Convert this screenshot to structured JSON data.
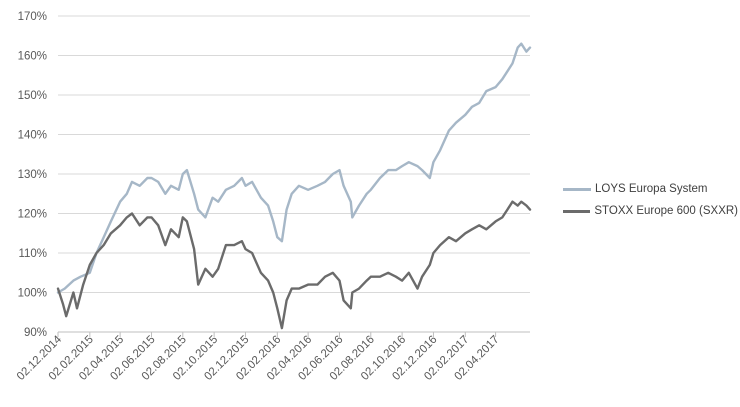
{
  "chart_data": {
    "type": "line",
    "title": "",
    "xlabel": "",
    "ylabel": "",
    "ylim": [
      90,
      170
    ],
    "yticks": [
      90,
      100,
      110,
      120,
      130,
      140,
      150,
      160,
      170
    ],
    "ytick_labels": [
      "90%",
      "100%",
      "110%",
      "120%",
      "130%",
      "140%",
      "150%",
      "160%",
      "170%"
    ],
    "xticks": [
      "2014-12-02",
      "2015-02-02",
      "2015-04-02",
      "2015-06-02",
      "2015-08-02",
      "2015-10-02",
      "2015-12-02",
      "2016-02-02",
      "2016-04-02",
      "2016-06-02",
      "2016-08-02",
      "2016-10-02",
      "2016-12-02",
      "2017-02-02",
      "2017-04-02"
    ],
    "xtick_labels": [
      "02.12.2014",
      "02.02.2015",
      "02.04.2015",
      "02.06.2015",
      "02.08.2015",
      "02.10.2015",
      "02.12.2015",
      "02.02.2016",
      "02.04.2016",
      "02.06.2016",
      "02.08.2016",
      "02.10.2016",
      "02.12.2016",
      "02.02.2017",
      "02.04.2017"
    ],
    "xlim": [
      "2014-12-02",
      "2017-06-08"
    ],
    "grid": "horizontal",
    "legend_position": "right",
    "series": [
      {
        "name": "LOYS Europa System",
        "color": "#a6b7c7",
        "x": [
          "2014-12-02",
          "2014-12-15",
          "2015-01-01",
          "2015-01-15",
          "2015-02-02",
          "2015-02-15",
          "2015-03-01",
          "2015-03-15",
          "2015-04-02",
          "2015-04-15",
          "2015-04-25",
          "2015-05-10",
          "2015-05-25",
          "2015-06-02",
          "2015-06-15",
          "2015-06-29",
          "2015-07-10",
          "2015-07-25",
          "2015-08-02",
          "2015-08-10",
          "2015-08-24",
          "2015-09-01",
          "2015-09-15",
          "2015-09-29",
          "2015-10-10",
          "2015-10-25",
          "2015-11-10",
          "2015-11-25",
          "2015-12-02",
          "2015-12-15",
          "2016-01-01",
          "2016-01-15",
          "2016-01-25",
          "2016-02-02",
          "2016-02-11",
          "2016-02-20",
          "2016-03-01",
          "2016-03-15",
          "2016-04-02",
          "2016-04-20",
          "2016-05-05",
          "2016-05-20",
          "2016-06-02",
          "2016-06-10",
          "2016-06-24",
          "2016-06-27",
          "2016-07-10",
          "2016-07-25",
          "2016-08-02",
          "2016-08-20",
          "2016-09-05",
          "2016-09-20",
          "2016-10-02",
          "2016-10-15",
          "2016-11-01",
          "2016-11-10",
          "2016-11-25",
          "2016-12-02",
          "2016-12-15",
          "2017-01-01",
          "2017-01-15",
          "2017-02-02",
          "2017-02-15",
          "2017-03-01",
          "2017-03-15",
          "2017-04-02",
          "2017-04-15",
          "2017-04-25",
          "2017-05-05",
          "2017-05-15",
          "2017-05-22",
          "2017-06-01",
          "2017-06-08"
        ],
        "y": [
          100,
          101,
          103,
          104,
          105,
          110,
          114,
          118,
          123,
          125,
          128,
          127,
          129,
          129,
          128,
          125,
          127,
          126,
          130,
          131,
          125,
          121,
          119,
          124,
          123,
          126,
          127,
          129,
          127,
          128,
          124,
          122,
          118,
          114,
          113,
          121,
          125,
          127,
          126,
          127,
          128,
          130,
          131,
          127,
          123,
          119,
          122,
          125,
          126,
          129,
          131,
          131,
          132,
          133,
          132,
          131,
          129,
          133,
          136,
          141,
          143,
          145,
          147,
          148,
          151,
          152,
          154,
          156,
          158,
          162,
          163,
          161,
          162
        ]
      },
      {
        "name": "STOXX Europe 600 (SXXR)",
        "color": "#6b6b6b",
        "x": [
          "2014-12-02",
          "2014-12-12",
          "2014-12-18",
          "2015-01-01",
          "2015-01-08",
          "2015-01-20",
          "2015-02-02",
          "2015-02-15",
          "2015-03-01",
          "2015-03-15",
          "2015-04-02",
          "2015-04-15",
          "2015-04-25",
          "2015-05-10",
          "2015-05-25",
          "2015-06-02",
          "2015-06-15",
          "2015-06-29",
          "2015-07-10",
          "2015-07-25",
          "2015-08-02",
          "2015-08-10",
          "2015-08-24",
          "2015-09-01",
          "2015-09-15",
          "2015-09-29",
          "2015-10-10",
          "2015-10-25",
          "2015-11-10",
          "2015-11-25",
          "2015-12-02",
          "2015-12-15",
          "2016-01-01",
          "2016-01-15",
          "2016-01-25",
          "2016-02-02",
          "2016-02-11",
          "2016-02-20",
          "2016-03-01",
          "2016-03-15",
          "2016-04-02",
          "2016-04-20",
          "2016-05-05",
          "2016-05-20",
          "2016-06-02",
          "2016-06-10",
          "2016-06-24",
          "2016-06-27",
          "2016-07-10",
          "2016-07-25",
          "2016-08-02",
          "2016-08-20",
          "2016-09-05",
          "2016-09-20",
          "2016-10-02",
          "2016-10-15",
          "2016-11-01",
          "2016-11-10",
          "2016-11-25",
          "2016-12-02",
          "2016-12-15",
          "2017-01-01",
          "2017-01-15",
          "2017-02-02",
          "2017-02-15",
          "2017-03-01",
          "2017-03-15",
          "2017-04-02",
          "2017-04-15",
          "2017-04-25",
          "2017-05-05",
          "2017-05-15",
          "2017-05-22",
          "2017-06-01",
          "2017-06-08"
        ],
        "y": [
          101,
          97,
          94,
          100,
          96,
          102,
          107,
          110,
          112,
          115,
          117,
          119,
          120,
          117,
          119,
          119,
          117,
          112,
          116,
          114,
          119,
          118,
          111,
          102,
          106,
          104,
          106,
          112,
          112,
          113,
          111,
          110,
          105,
          103,
          100,
          96,
          91,
          98,
          101,
          101,
          102,
          102,
          104,
          105,
          103,
          98,
          96,
          100,
          101,
          103,
          104,
          104,
          105,
          104,
          103,
          105,
          101,
          104,
          107,
          110,
          112,
          114,
          113,
          115,
          116,
          117,
          116,
          118,
          119,
          121,
          123,
          122,
          123,
          122,
          121
        ]
      }
    ]
  }
}
